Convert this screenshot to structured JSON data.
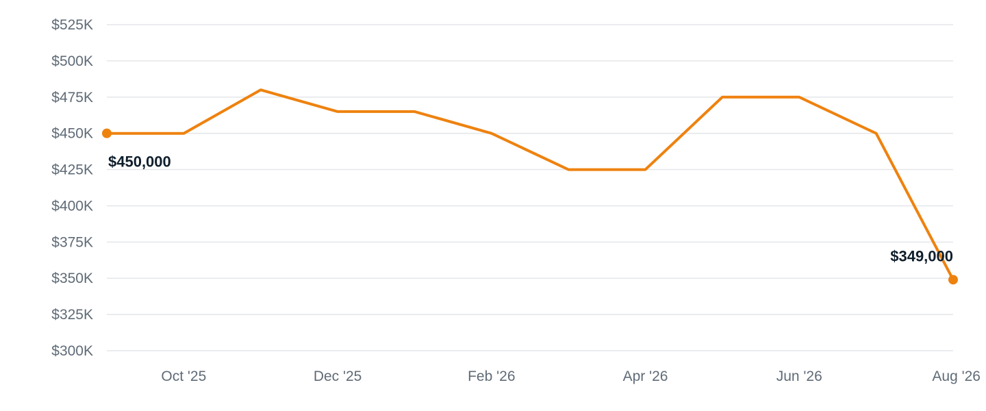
{
  "chart_data": {
    "type": "line",
    "x": [
      "Sep '25",
      "Oct '25",
      "Nov '25",
      "Dec '25",
      "Jan '26",
      "Feb '26",
      "Mar '26",
      "Apr '26",
      "May '26",
      "Jun '26",
      "Jul '26",
      "Aug '26"
    ],
    "series": [
      {
        "values": [
          450000,
          450000,
          480000,
          465000,
          465000,
          450000,
          425000,
          425000,
          475000,
          475000,
          450000,
          349000
        ],
        "color": "#ee820f"
      }
    ],
    "ylim": [
      300000,
      525000
    ],
    "yticks": [
      300000,
      325000,
      350000,
      375000,
      400000,
      425000,
      450000,
      475000,
      500000,
      525000
    ],
    "ytick_labels": [
      "$300K",
      "$325K",
      "$350K",
      "$375K",
      "$400K",
      "$425K",
      "$450K",
      "$475K",
      "$500K",
      "$525K"
    ],
    "xtick_labels": [
      {
        "index": 1,
        "label": "Oct '25"
      },
      {
        "index": 3,
        "label": "Dec '25"
      },
      {
        "index": 5,
        "label": "Feb '26"
      },
      {
        "index": 7,
        "label": "Apr '26"
      },
      {
        "index": 9,
        "label": "Jun '26"
      },
      {
        "index": 11,
        "label": "Aug '26"
      }
    ],
    "annotations": [
      {
        "index": 0,
        "text": "$450,000"
      },
      {
        "index": 11,
        "text": "$349,000"
      }
    ],
    "grid": true,
    "title": "",
    "xlabel": "",
    "ylabel": ""
  }
}
